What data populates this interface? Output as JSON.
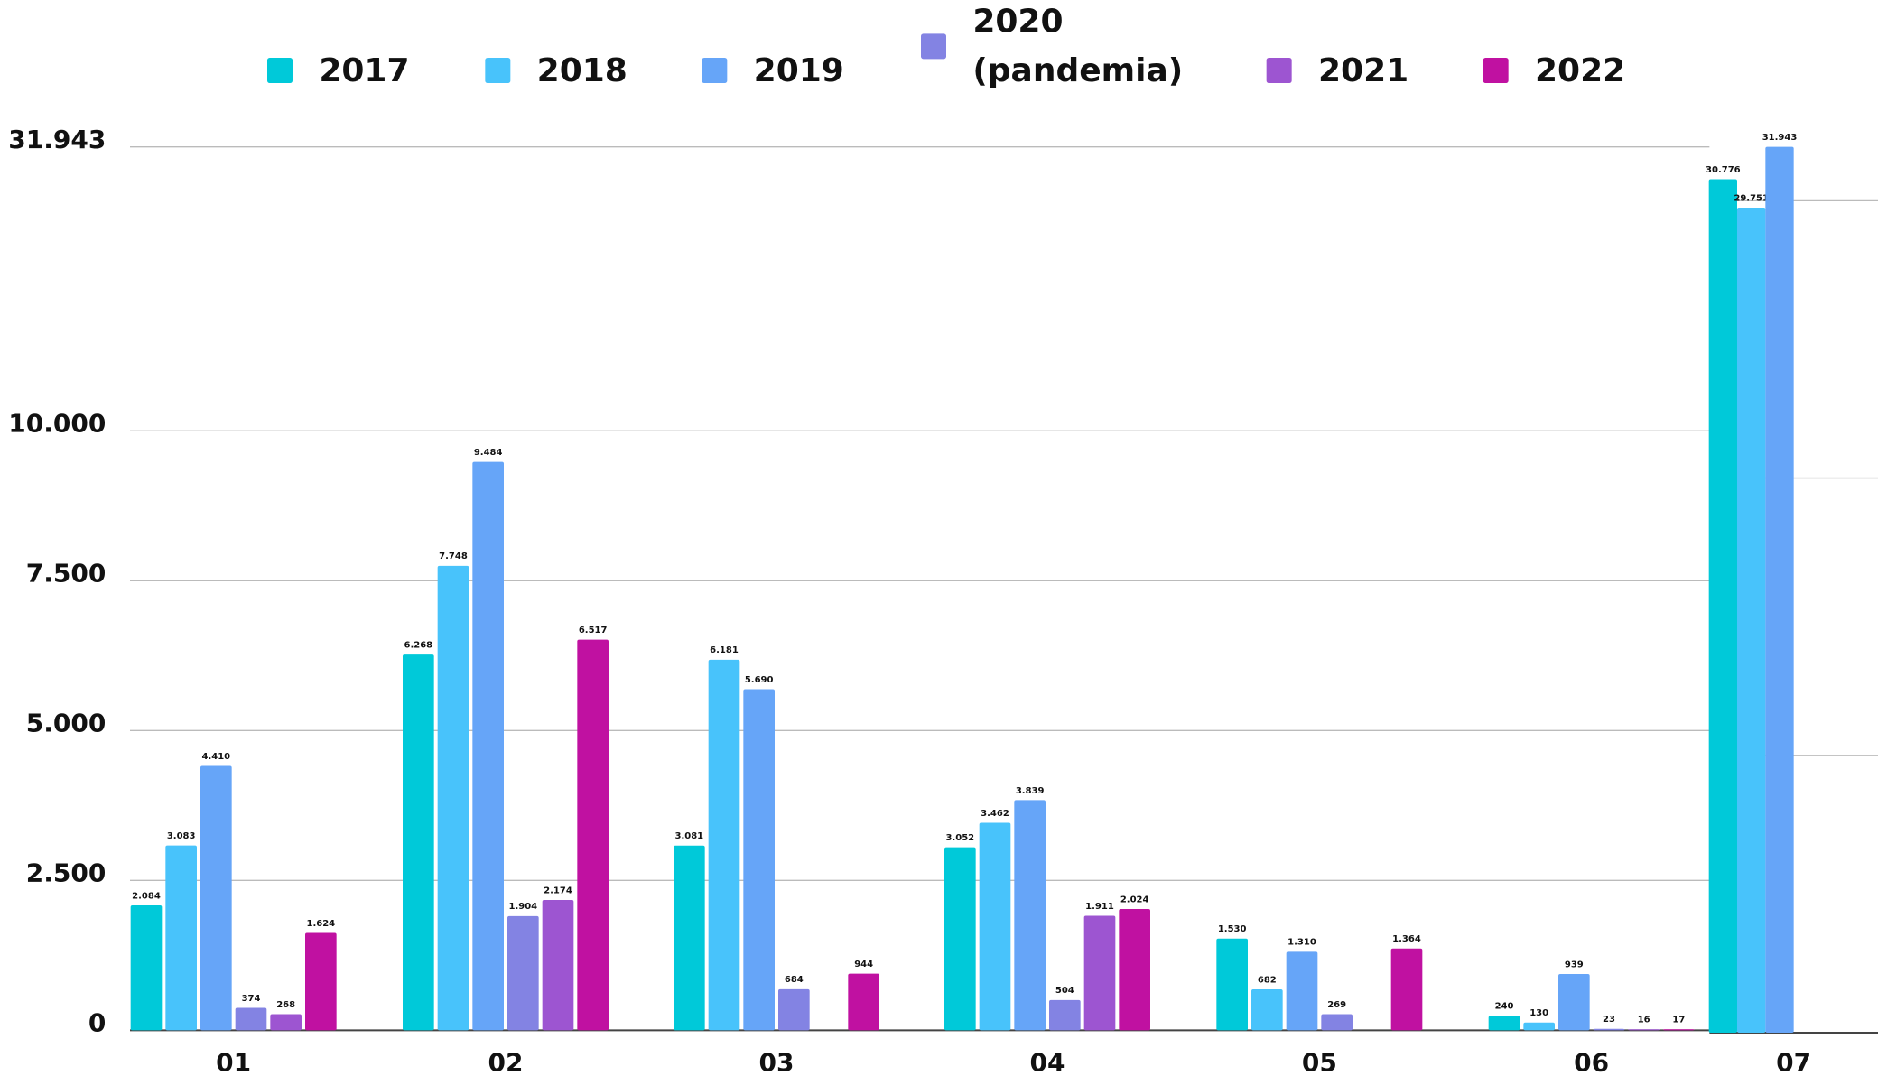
{
  "chart_data": [
    {
      "type": "bar",
      "categories": [
        "01",
        "02",
        "03",
        "04",
        "05",
        "06"
      ],
      "ylim": [
        0,
        10000
      ],
      "yticks": [
        0,
        {
          "value": 2500,
          "label": "2.500"
        },
        {
          "value": 5000,
          "label": "5.000"
        },
        {
          "value": 7500,
          "label": "7.500"
        },
        {
          "value": 10000,
          "label": "10.000"
        }
      ],
      "grid": true,
      "legend": "top",
      "series": [
        {
          "name": "2017",
          "color": "#00c9d9",
          "values": [
            2084,
            6268,
            3081,
            3052,
            1530,
            240
          ],
          "value_labels": [
            "2.084",
            "6.268",
            "3.081",
            "3.052",
            "1.530",
            "240"
          ]
        },
        {
          "name": "2018",
          "color": "#48c3fb",
          "values": [
            3083,
            7748,
            6181,
            3462,
            682,
            130
          ],
          "value_labels": [
            "3.083",
            "7.748",
            "6.181",
            "3.462",
            "682",
            "130"
          ]
        },
        {
          "name": "2019",
          "color": "#66a5f8",
          "values": [
            4410,
            9484,
            5690,
            3839,
            1310,
            939
          ],
          "value_labels": [
            "4.410",
            "9.484",
            "5.690",
            "3.839",
            "1.310",
            "939"
          ]
        },
        {
          "name": "2020 (pandemia)",
          "color": "#8383e3",
          "values": [
            374,
            1904,
            684,
            504,
            269,
            23
          ],
          "value_labels": [
            "374",
            "1.904",
            "684",
            "504",
            "269",
            "23"
          ]
        },
        {
          "name": "2021",
          "color": "#9d55d1",
          "values": [
            268,
            2174,
            null,
            1911,
            null,
            16
          ],
          "value_labels": [
            "268",
            "2.174",
            null,
            "1.911",
            null,
            "16"
          ]
        },
        {
          "name": "2022",
          "color": "#c011a1",
          "values": [
            1624,
            6517,
            944,
            2024,
            1364,
            17
          ],
          "value_labels": [
            "1.624",
            "6.517",
            "944",
            "2.024",
            "1.364",
            "17"
          ]
        }
      ]
    },
    {
      "type": "bar",
      "categories": [
        "07"
      ],
      "ylim": [
        0,
        31943
      ],
      "yticks": [
        {
          "value": 31943,
          "label": "31.943"
        }
      ],
      "minor_yticks": [
        0,
        10000,
        20000,
        30000
      ],
      "grid": true,
      "series": [
        {
          "name": "2017",
          "color": "#00c9d9",
          "values": [
            30776
          ],
          "value_labels": [
            "30.776"
          ]
        },
        {
          "name": "2018",
          "color": "#48c3fb",
          "values": [
            29751
          ],
          "value_labels": [
            "29.751"
          ]
        },
        {
          "name": "2019",
          "color": "#66a5f8",
          "values": [
            31943
          ],
          "value_labels": [
            "31.943"
          ]
        }
      ]
    }
  ]
}
